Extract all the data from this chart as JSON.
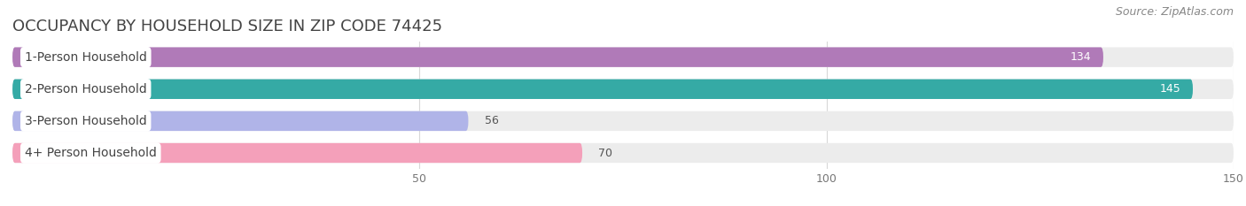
{
  "title": "OCCUPANCY BY HOUSEHOLD SIZE IN ZIP CODE 74425",
  "source": "Source: ZipAtlas.com",
  "categories": [
    "1-Person Household",
    "2-Person Household",
    "3-Person Household",
    "4+ Person Household"
  ],
  "values": [
    134,
    145,
    56,
    70
  ],
  "bar_colors": [
    "#b07ab8",
    "#35aaa5",
    "#b0b4e8",
    "#f4a0ba"
  ],
  "track_color": "#ececec",
  "xlim": [
    0,
    150
  ],
  "xticks": [
    50,
    100,
    150
  ],
  "title_fontsize": 13,
  "source_fontsize": 9,
  "label_fontsize": 10,
  "value_fontsize": 9,
  "tick_fontsize": 9,
  "background_color": "#ffffff",
  "bar_height": 0.62
}
